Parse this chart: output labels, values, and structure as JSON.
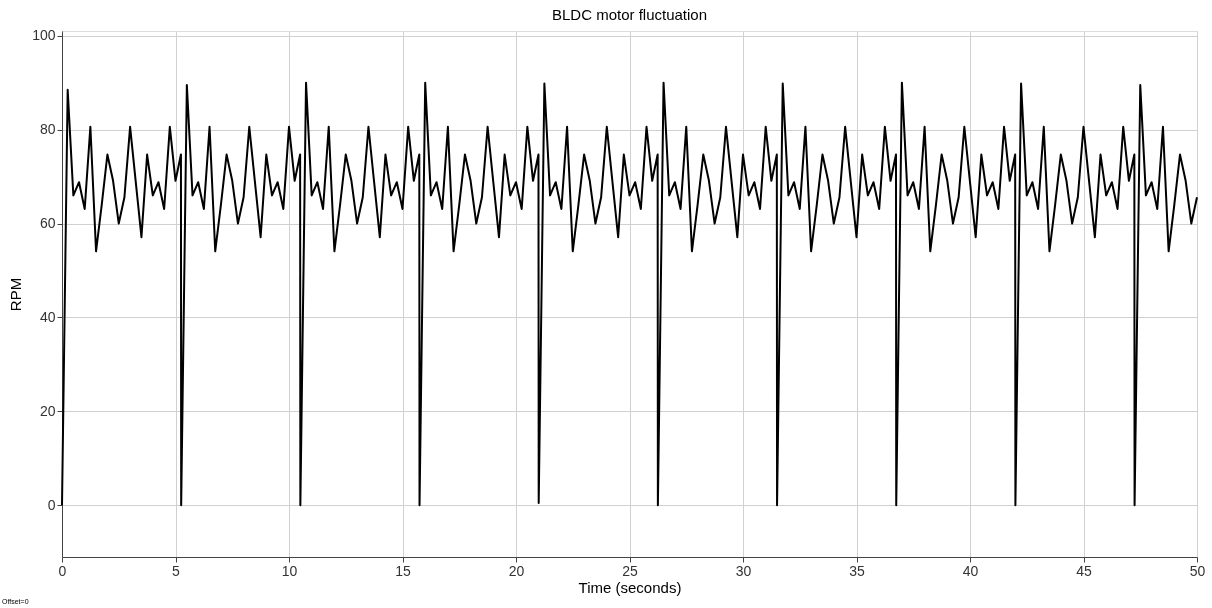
{
  "chart_data": {
    "type": "line",
    "title": "BLDC motor fluctuation",
    "xlabel": "Time (seconds)",
    "ylabel": "RPM",
    "xlim": [
      0,
      50
    ],
    "ylim": [
      -11,
      101
    ],
    "xticks": [
      0,
      5,
      10,
      15,
      20,
      25,
      30,
      35,
      40,
      45,
      50
    ],
    "yticks": [
      0,
      20,
      40,
      60,
      80,
      100
    ],
    "grid": true,
    "legend": false,
    "marker": "none",
    "line_style": "solid",
    "annotations": [
      "Offset=0"
    ],
    "series": [
      {
        "color": "#000000",
        "x": [
          0,
          0.25,
          0.5,
          0.75,
          1,
          1.25,
          1.5,
          1.75,
          2,
          2.25,
          2.5,
          2.75,
          3,
          3.25,
          3.5,
          3.75,
          4,
          4.25,
          4.5,
          4.75,
          5,
          5.24,
          5.25,
          5.5,
          5.75,
          6,
          6.25,
          6.5,
          6.75,
          7,
          7.25,
          7.5,
          7.75,
          8,
          8.25,
          8.5,
          8.75,
          9,
          9.25,
          9.5,
          9.75,
          10,
          10.25,
          10.49,
          10.5,
          10.75,
          11,
          11.25,
          11.5,
          11.75,
          12,
          12.25,
          12.5,
          12.75,
          13,
          13.25,
          13.5,
          13.75,
          14,
          14.25,
          14.5,
          14.75,
          15,
          15.25,
          15.5,
          15.74,
          15.75,
          16,
          16.25,
          16.5,
          16.75,
          17,
          17.25,
          17.5,
          17.75,
          18,
          18.25,
          18.5,
          18.75,
          19,
          19.25,
          19.5,
          19.75,
          20,
          20.25,
          20.5,
          20.75,
          20.99,
          21,
          21.25,
          21.5,
          21.75,
          22,
          22.25,
          22.5,
          22.75,
          23,
          23.25,
          23.5,
          23.75,
          24,
          24.25,
          24.5,
          24.75,
          25,
          25.25,
          25.5,
          25.75,
          26,
          26.24,
          26.25,
          26.5,
          26.75,
          27,
          27.25,
          27.5,
          27.75,
          28,
          28.25,
          28.5,
          28.75,
          29,
          29.25,
          29.5,
          29.75,
          30,
          30.25,
          30.5,
          30.75,
          31,
          31.25,
          31.49,
          31.5,
          31.75,
          32,
          32.25,
          32.5,
          32.75,
          33,
          33.25,
          33.5,
          33.75,
          34,
          34.25,
          34.5,
          34.75,
          35,
          35.25,
          35.5,
          35.75,
          36,
          36.25,
          36.5,
          36.74,
          36.75,
          37,
          37.25,
          37.5,
          37.75,
          38,
          38.25,
          38.5,
          38.75,
          39,
          39.25,
          39.5,
          39.75,
          40,
          40.25,
          40.5,
          40.75,
          41,
          41.25,
          41.5,
          41.75,
          41.99,
          42,
          42.25,
          42.5,
          42.75,
          43,
          43.25,
          43.5,
          43.75,
          44,
          44.25,
          44.5,
          44.75,
          45,
          45.25,
          45.5,
          45.75,
          46,
          46.25,
          46.5,
          46.75,
          47,
          47.24,
          47.25,
          47.5,
          47.75,
          48,
          48.25,
          48.5,
          48.75,
          49,
          49.25,
          49.5,
          49.75,
          50
        ],
        "values": [
          0,
          88.5,
          66,
          68.8,
          63.1,
          80.6,
          54.1,
          64,
          74.7,
          69.1,
          60,
          65.6,
          80.6,
          68.8,
          57.1,
          74.7,
          66,
          68.8,
          63.1,
          80.6,
          69.1,
          74.7,
          0,
          89.5,
          66,
          68.8,
          63.1,
          80.6,
          54.1,
          64,
          74.7,
          69.1,
          60,
          65.6,
          80.6,
          68.8,
          57.1,
          74.7,
          66,
          68.8,
          63.1,
          80.6,
          69.1,
          74.7,
          0,
          90,
          66,
          68.8,
          63.1,
          80.6,
          54.1,
          64,
          74.7,
          69.1,
          60,
          65.6,
          80.6,
          68.8,
          57.1,
          74.7,
          66,
          68.8,
          63.1,
          80.6,
          69.1,
          74.7,
          0,
          90,
          66,
          68.8,
          63.1,
          80.6,
          54.1,
          64,
          74.7,
          69.1,
          60,
          65.6,
          80.6,
          68.8,
          57.1,
          74.7,
          66,
          68.8,
          63.1,
          80.6,
          69.1,
          74.7,
          0.5,
          89.8,
          66,
          68.8,
          63.1,
          80.6,
          54.1,
          64,
          74.7,
          69.1,
          60,
          65.6,
          80.6,
          68.8,
          57.1,
          74.7,
          66,
          68.8,
          63.1,
          80.6,
          69.1,
          74.7,
          0,
          90,
          66,
          68.8,
          63.1,
          80.6,
          54.1,
          64,
          74.7,
          69.1,
          60,
          65.6,
          80.6,
          68.8,
          57.1,
          74.7,
          66,
          68.8,
          63.1,
          80.6,
          69.1,
          74.7,
          0,
          89.8,
          66,
          68.8,
          63.1,
          80.6,
          54.1,
          64,
          74.7,
          69.1,
          60,
          65.6,
          80.6,
          68.8,
          57.1,
          74.7,
          66,
          68.8,
          63.1,
          80.6,
          69.1,
          74.7,
          0,
          90,
          66,
          68.8,
          63.1,
          80.6,
          54.1,
          64,
          74.7,
          69.1,
          60,
          65.6,
          80.6,
          68.8,
          57.1,
          74.7,
          66,
          68.8,
          63.1,
          80.6,
          69.1,
          74.7,
          0,
          89.8,
          66,
          68.8,
          63.1,
          80.6,
          54.1,
          64,
          74.7,
          69.1,
          60,
          65.6,
          80.6,
          68.8,
          57.1,
          74.7,
          66,
          68.8,
          63.1,
          80.6,
          69.1,
          74.7,
          0,
          89.5,
          66,
          68.8,
          63.1,
          80.6,
          54.1,
          64,
          74.7,
          69.1,
          60,
          65.6
        ]
      }
    ]
  }
}
